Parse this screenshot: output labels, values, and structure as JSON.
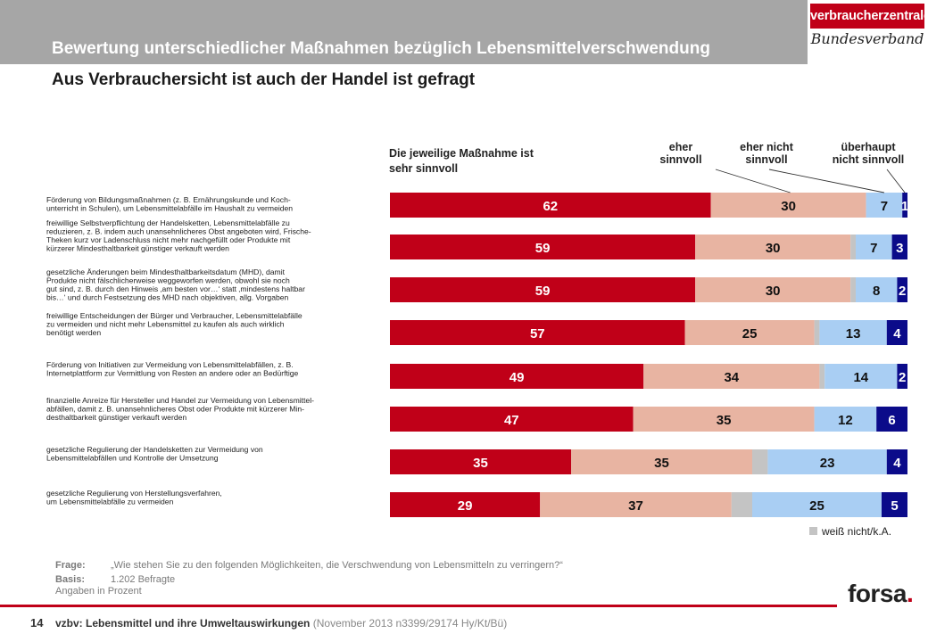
{
  "header": {
    "title": "Bewertung unterschiedlicher Maßnahmen bezüglich Lebensmittelverschwendung",
    "subtitle": "Aus Verbrauchersicht ist auch der Handel ist gefragt"
  },
  "logo": {
    "name": "verbraucherzentrale",
    "sub": "Bundesverband"
  },
  "colors": {
    "sehr": "#c00018",
    "eher": "#e8b4a2",
    "weissnicht": "#c4c4c4",
    "eher_nicht": "#a9cef3",
    "ueberhaupt": "#0b0b8a"
  },
  "chart_data": {
    "type": "bar",
    "orientation": "horizontal",
    "stacked": true,
    "unit": "Angaben in Prozent",
    "categories": [
      "Förderung von Bildungsmaßnahmen (z. B. Ernährungskunde und Koch-\nunterricht in Schulen), um Lebensmittelabfälle im Haushalt zu vermeiden",
      "freiwillige Selbstverpflichtung der Handelsketten, Lebensmittelabfälle zu\nreduzieren, z. B. indem auch unansehnlicheres Obst angeboten wird, Frische-\nTheken kurz vor Ladenschluss nicht mehr nachgefüllt oder Produkte mit\nkürzerer Mindesthaltbarkeit günstiger verkauft werden",
      "gesetzliche Änderungen beim Mindesthaltbarkeitsdatum (MHD), damit\nProdukte nicht fälschlicherweise weggeworfen werden, obwohl sie noch\ngut sind, z. B. durch den Hinweis ‚am besten vor…‘ statt ‚mindestens haltbar\nbis…‘ und durch Festsetzung des MHD nach objektiven, allg. Vorgaben",
      "freiwillige Entscheidungen der Bürger und Verbraucher, Lebensmittelabfälle\nzu vermeiden und nicht mehr Lebensmittel zu kaufen als auch wirklich\nbenötigt werden",
      "Förderung von Initiativen zur Vermeidung von Lebensmittelabfällen, z. B.\nInternetplattform zur Vermittlung von Resten an andere oder an Bedürftige",
      "finanzielle Anreize für Hersteller und Handel zur Vermeidung von Lebensmittel-\nabfällen, damit z. B. unansehnlicheres Obst oder Produkte mit kürzerer Min-\ndesthaltbarkeit günstiger verkauft werden",
      "gesetzliche Regulierung der Handelsketten zur Vermeidung von\nLebensmittelabfällen und Kontrolle der Umsetzung",
      "gesetzliche Regulierung von Herstellungsverfahren,\num Lebensmittelabfälle zu vermeiden"
    ],
    "series": [
      {
        "name": "Die jeweilige Maßnahme ist sehr sinnvoll",
        "key": "sehr",
        "values": [
          62,
          59,
          59,
          57,
          49,
          47,
          35,
          29
        ]
      },
      {
        "name": "eher sinnvoll",
        "key": "eher",
        "values": [
          30,
          30,
          30,
          25,
          34,
          35,
          35,
          37
        ]
      },
      {
        "name": "weiß nicht/k.A.",
        "key": "weissnicht",
        "values": [
          0,
          1,
          1,
          1,
          1,
          0,
          3,
          4
        ]
      },
      {
        "name": "eher nicht sinnvoll",
        "key": "eher_nicht",
        "values": [
          7,
          7,
          8,
          13,
          14,
          12,
          23,
          25
        ]
      },
      {
        "name": "überhaupt nicht sinnvoll",
        "key": "ueberhaupt",
        "values": [
          1,
          3,
          2,
          4,
          2,
          6,
          4,
          5
        ]
      }
    ],
    "xlim": [
      0,
      100
    ],
    "legend": {
      "sehr": "Die jeweilige Maßnahme ist\nsehr sinnvoll",
      "eher": "eher\nsinnvoll",
      "eher_nicht": "eher nicht\nsinnvoll",
      "ueberhaupt": "überhaupt\nnicht sinnvoll",
      "weissnicht": "weiß nicht/k.A."
    }
  },
  "notes": {
    "frage_label": "Frage:",
    "frage": "„Wie stehen Sie zu den folgenden Möglichkeiten, die Verschwendung von Lebensmitteln zu verringern?“",
    "basis_label": "Basis:",
    "basis": "1.202 Befragte",
    "unit": "Angaben in Prozent"
  },
  "footer": {
    "page": "14",
    "study": "vzbv: Lebensmittel und ihre Umweltauswirkungen",
    "meta": "(November 2013  n3399/29174  Hy/Kt/Bü)",
    "brand": "forsa",
    "brand_dot": "."
  }
}
